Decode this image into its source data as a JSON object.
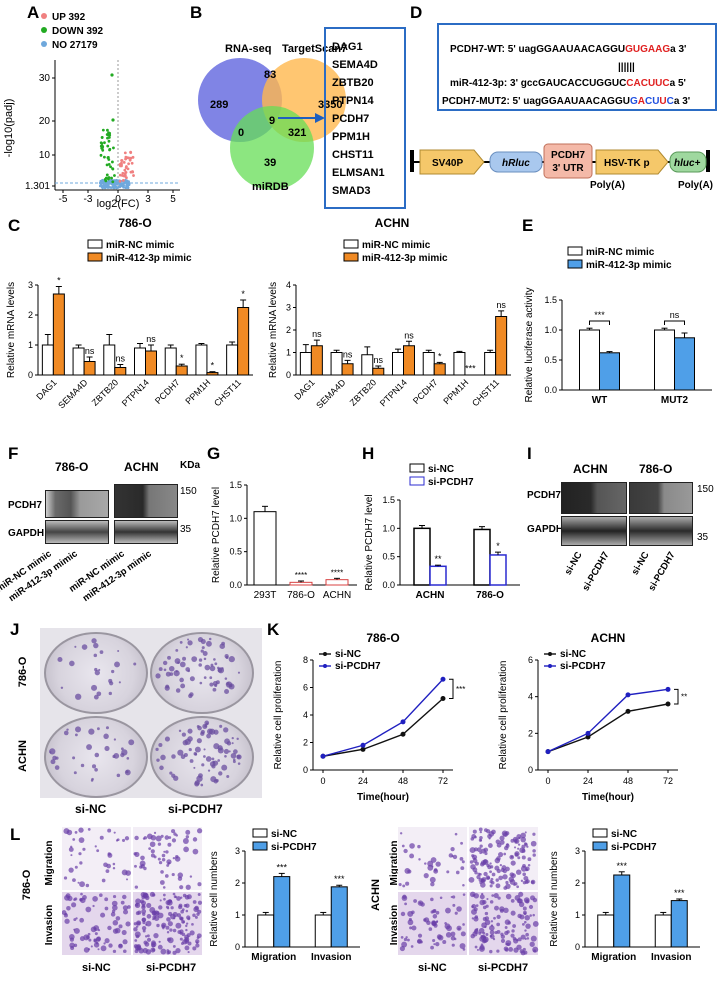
{
  "panels": {
    "A": "A",
    "B": "B",
    "C": "C",
    "D": "D",
    "E": "E",
    "F": "F",
    "G": "G",
    "H": "H",
    "I": "I",
    "J": "J",
    "K": "K",
    "L": "L"
  },
  "panelA": {
    "legend": [
      "UP 392",
      "DOWN 392",
      "NO 27179"
    ],
    "colors": [
      "#f08080",
      "#22aa22",
      "#6fa8dc"
    ],
    "ylabel": "-log10(padj)",
    "xlabel": "log2(FC)",
    "yticks": [
      "30",
      "20",
      "10",
      "1.301"
    ],
    "xticks": [
      "-5",
      "-3",
      "0",
      "3",
      "5"
    ]
  },
  "panelB": {
    "sets": [
      "RNA-seq",
      "TargetScan7",
      "miRDB"
    ],
    "counts": [
      "289",
      "83",
      "3350",
      "9",
      "0",
      "321",
      "39"
    ],
    "genes": [
      "DAG1",
      "SEMA4D",
      "ZBTB20",
      "PTPN14",
      "PCDH7",
      "PPM1H",
      "CHST11",
      "ELMSAN1",
      "SMAD3"
    ]
  },
  "panelD": {
    "wt_prefix": "PCDH7-WT: 5' uagGGAAUAACAGGU",
    "wt_red": "GUGAAG",
    "wt_suffix": "a 3'",
    "bars": "||||||",
    "mir_prefix": "miR-412-3p: 3' gccGAUCACCUGGUC",
    "mir_red": "CACUUC",
    "mir_suffix": "a 5'",
    "mut_prefix": "PCDH7-MUT2: 5' uagGGAAUAACAGGU",
    "mut_blue1": "G",
    "mut_red1": "A",
    "mut_blue2": "CU",
    "mut_red2": "U",
    "mut_blue3": "C",
    "mut_suffix": "a 3'",
    "elements": [
      "SV40P",
      "hRluc",
      "PCDH7",
      "3' UTR",
      "HSV-TK p",
      "hluc+"
    ],
    "polyA": [
      "Poly(A)",
      "Poly(A)"
    ]
  },
  "panelC": {
    "legend": [
      "miR-NC mimic",
      "miR-412-3p mimic"
    ],
    "ylabel": "Relative mRNA levels",
    "yticks": [
      "0",
      "1",
      "2",
      "3",
      "4"
    ],
    "colors": {
      "nc": "#ffffff",
      "mimic": "#f08a24"
    },
    "charts": [
      {
        "title": "786-O",
        "categories": [
          "DAG1",
          "SEMA4D",
          "ZBTB20",
          "PTPN14",
          "PCDH7",
          "PPM1H",
          "CHST11"
        ],
        "nc": [
          1.0,
          0.9,
          1.0,
          0.9,
          0.9,
          1.0,
          1.0
        ],
        "mimic": [
          2.7,
          0.45,
          0.25,
          0.8,
          0.3,
          0.08,
          2.25
        ],
        "sig": [
          "*",
          "ns",
          "ns",
          "ns",
          "*",
          "*",
          "*"
        ]
      },
      {
        "title": "ACHN",
        "categories": [
          "DAG1",
          "SEMA4D",
          "ZBTB20",
          "PTPN14",
          "PCDH7",
          "PPM1H",
          "CHST11"
        ],
        "nc": [
          1.0,
          1.0,
          0.9,
          1.0,
          1.0,
          1.0,
          1.0
        ],
        "mimic": [
          1.3,
          0.5,
          0.3,
          1.3,
          0.5,
          0.0,
          2.6
        ],
        "sig": [
          "ns",
          "ns",
          "ns",
          "ns",
          "*",
          "***",
          "ns"
        ]
      }
    ]
  },
  "panelE": {
    "legend": [
      "miR-NC mimic",
      "miR-412-3p mimic"
    ],
    "ylabel": "Relative luciferase activity",
    "yticks": [
      "0.0",
      "0.5",
      "1.0",
      "1.5"
    ],
    "categories": [
      "WT",
      "MUT2"
    ],
    "nc": [
      1.0,
      1.0
    ],
    "mimic": [
      0.62,
      0.87
    ],
    "sig": [
      "***",
      "ns"
    ]
  },
  "panelF": {
    "cells": [
      "786-O",
      "ACHN"
    ],
    "kda": "KDa",
    "rows": [
      "PCDH7",
      "GAPDH"
    ],
    "markers": [
      "150",
      "35"
    ],
    "lanes": [
      "miR-NC mimic",
      "miR-412-3p mimic",
      "miR-NC mimic",
      "miR-412-3p mimic"
    ]
  },
  "panelG": {
    "ylabel": "Relative PCDH7 level",
    "yticks": [
      "0.0",
      "0.5",
      "1.0",
      "1.5"
    ],
    "categories": [
      "293T",
      "786-O",
      "ACHN"
    ],
    "values": [
      1.1,
      0.04,
      0.08
    ],
    "sig": [
      "",
      "****",
      "****"
    ]
  },
  "panelH": {
    "legend": [
      "si-NC",
      "si-PCDH7"
    ],
    "ylabel": "Relative PCDH7 level",
    "yticks": [
      "0.0",
      "0.5",
      "1.0",
      "1.5"
    ],
    "categories": [
      "ACHN",
      "786-O"
    ],
    "nc": [
      1.0,
      0.98
    ],
    "si": [
      0.33,
      0.53
    ],
    "sig": [
      "**",
      "*"
    ]
  },
  "panelI": {
    "cells": [
      "ACHN",
      "786-O"
    ],
    "rows": [
      "PCDH7",
      "GAPDH"
    ],
    "markers": [
      "150",
      "35"
    ],
    "lanes": [
      "si-NC",
      "si-PCDH7",
      "si-NC",
      "si-PCDH7"
    ]
  },
  "panelJ": {
    "rows": [
      "786-O",
      "ACHN"
    ],
    "cols": [
      "si-NC",
      "si-PCDH7"
    ]
  },
  "panelK": {
    "legend": [
      "si-NC",
      "si-PCDH7"
    ],
    "ylabel": "Relative cell proliferation",
    "xlabel": "Time(hour)",
    "charts": [
      {
        "title": "786-O",
        "x": [
          0,
          24,
          48,
          72
        ],
        "nc": [
          1.0,
          1.5,
          2.6,
          5.2
        ],
        "si": [
          1.0,
          1.8,
          3.5,
          6.6
        ],
        "sig": "***",
        "yticks": [
          "0",
          "2",
          "4",
          "6",
          "8"
        ],
        "xticks": [
          "0",
          "24",
          "48",
          "72"
        ]
      },
      {
        "title": "ACHN",
        "x": [
          0,
          24,
          48,
          72
        ],
        "nc": [
          1.0,
          1.8,
          3.2,
          3.6
        ],
        "si": [
          1.0,
          2.0,
          4.1,
          4.4
        ],
        "sig": "**",
        "yticks": [
          "0",
          "2",
          "4",
          "6"
        ],
        "xticks": [
          "0",
          "24",
          "48",
          "72"
        ]
      }
    ]
  },
  "panelL": {
    "legend": [
      "si-NC",
      "si-PCDH7"
    ],
    "ylabel": "Relative cell numbers",
    "yticks": [
      "0",
      "1",
      "2",
      "3"
    ],
    "categories": [
      "Migration",
      "Invasion"
    ],
    "groups": [
      {
        "cell": "786-O",
        "nc": [
          1.0,
          1.0
        ],
        "si": [
          2.2,
          1.88
        ],
        "sig": [
          "***",
          "***"
        ]
      },
      {
        "cell": "ACHN",
        "nc": [
          1.0,
          1.0
        ],
        "si": [
          2.25,
          1.45
        ],
        "sig": [
          "***",
          "***"
        ]
      }
    ],
    "rows": [
      "Migration",
      "Invasion"
    ],
    "cols": [
      "si-NC",
      "si-PCDH7"
    ]
  }
}
